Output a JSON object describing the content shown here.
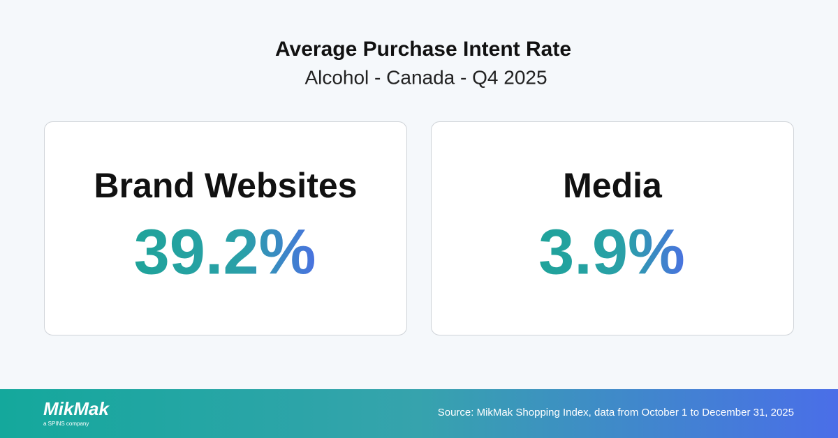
{
  "header": {
    "title": "Average Purchase Intent Rate",
    "subtitle": "Alcohol - Canada - Q4 2025"
  },
  "cards": [
    {
      "label": "Brand Websites",
      "value": "39.2%"
    },
    {
      "label": "Media",
      "value": "3.9%"
    }
  ],
  "footer": {
    "logo": "MikMak",
    "tagline": "a SPINS company",
    "source": "Source: MikMak Shopping Index, data from October 1 to December 31, 2025"
  }
}
